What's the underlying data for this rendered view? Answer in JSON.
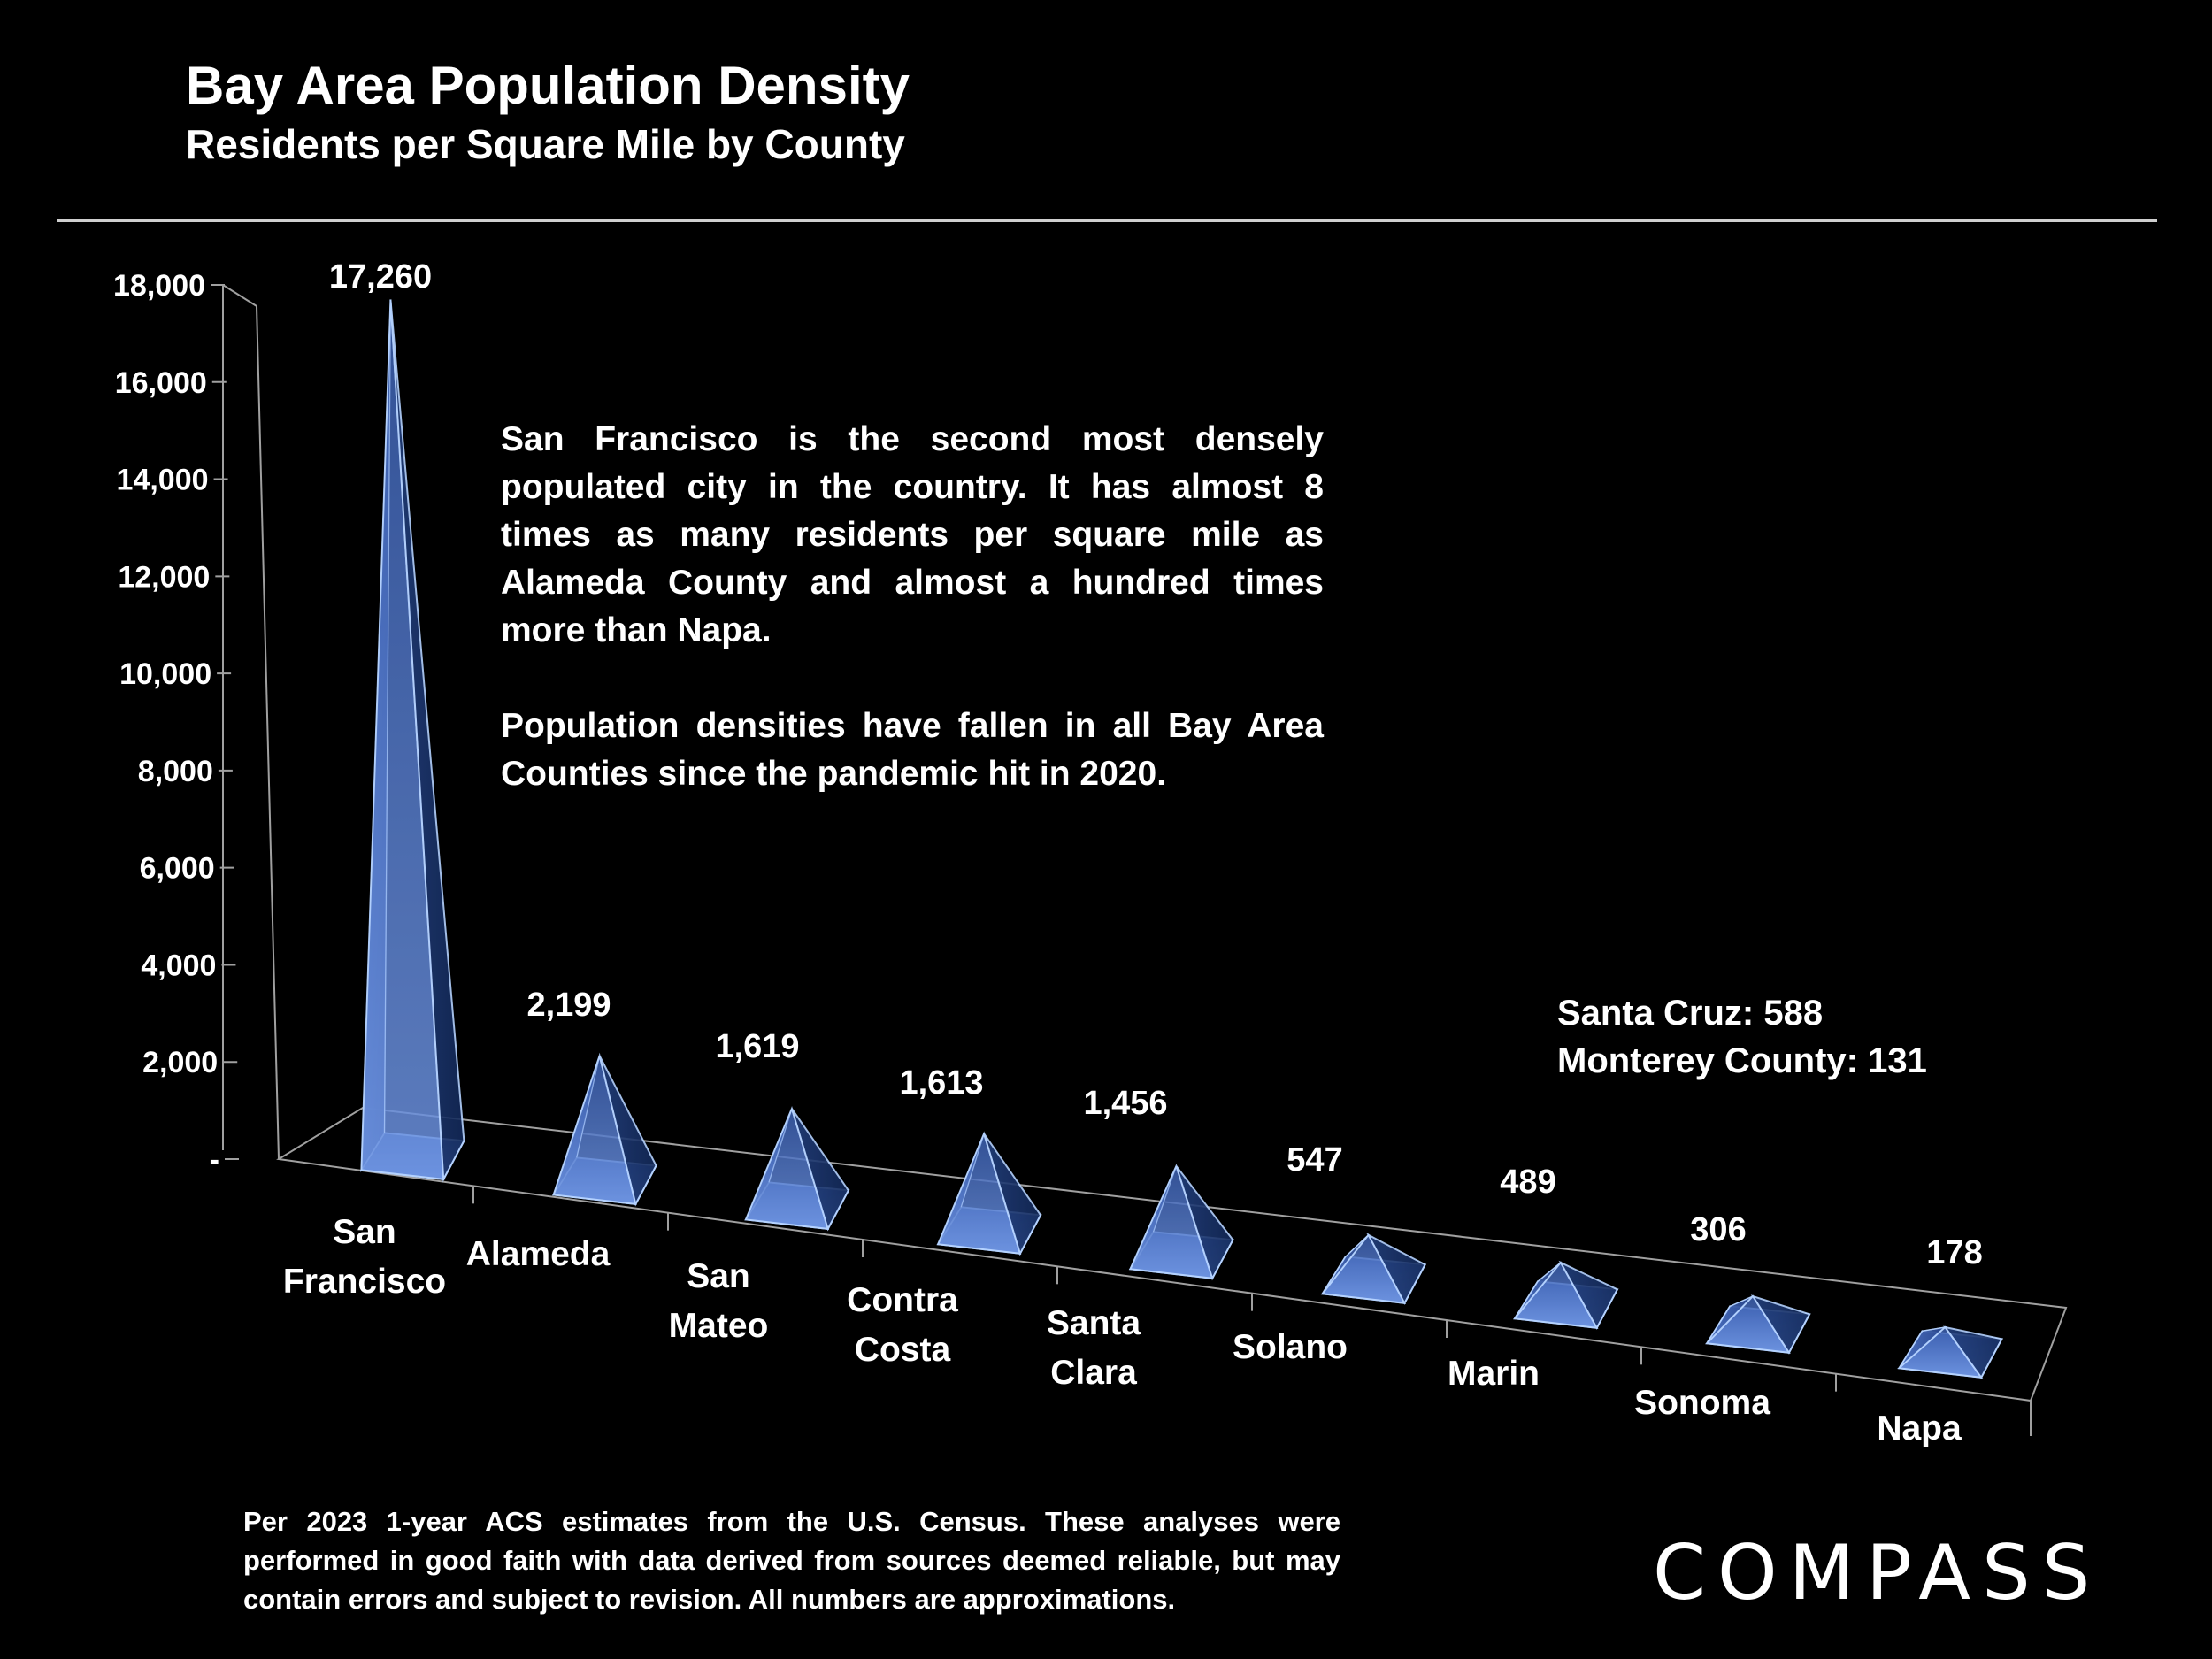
{
  "header": {
    "title": "Bay Area Population Density",
    "subtitle": "Residents per Square Mile by County"
  },
  "annotation": {
    "paragraph1": "San Francisco is the second most densely populated city in the country. It has almost 8 times as many residents per square mile as Alameda County and almost a hundred times more than Napa.",
    "paragraph2": "Population densities have fallen in all Bay Area Counties since the pandemic hit in 2020."
  },
  "side_note": {
    "line1": "Santa Cruz:  588",
    "line2": "Monterey County:  131"
  },
  "footnote": "Per 2023 1-year ACS estimates from the U.S. Census. These analyses were performed in good faith with data derived from sources deemed reliable, but may contain errors and subject to revision. All numbers are approximations.",
  "logo": "COMPASS",
  "chart_data": {
    "type": "bar",
    "title": "Bay Area Population Density",
    "subtitle": "Residents per Square Mile by County",
    "style": "3d-pyramid",
    "categories": [
      [
        "San",
        "Francisco"
      ],
      [
        "Alameda"
      ],
      [
        "San",
        "Mateo"
      ],
      [
        "Contra",
        "Costa"
      ],
      [
        "Santa",
        "Clara"
      ],
      [
        "Solano"
      ],
      [
        "Marin"
      ],
      [
        "Sonoma"
      ],
      [
        "Napa"
      ]
    ],
    "values": [
      17260,
      2199,
      1619,
      1613,
      1456,
      547,
      489,
      306,
      178
    ],
    "value_labels": [
      "17,260",
      "2,199",
      "1,619",
      "1,613",
      "1,456",
      "547",
      "489",
      "306",
      "178"
    ],
    "ylim": [
      0,
      18000
    ],
    "yticks": [
      0,
      2000,
      4000,
      6000,
      8000,
      10000,
      12000,
      14000,
      16000,
      18000
    ],
    "ytick_labels": [
      "-",
      "2,000",
      "4,000",
      "6,000",
      "8,000",
      "10,000",
      "12,000",
      "14,000",
      "16,000",
      "18,000"
    ],
    "colors": {
      "face_light": "#9fc3ff",
      "face_dark": "#1e3a78",
      "edge": "#b4d2ff",
      "axis": "#a0a0a0"
    }
  }
}
